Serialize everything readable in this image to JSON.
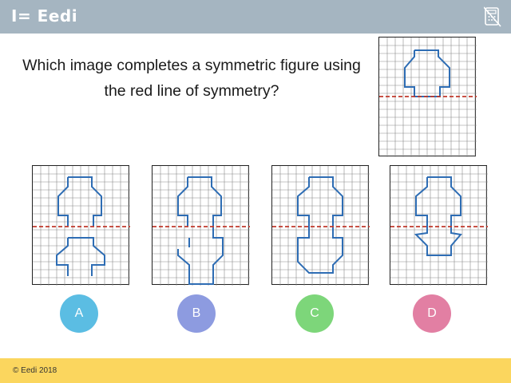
{
  "header": {
    "logo_text": "I= Eedi",
    "icon": "calculator-disabled-icon",
    "color": "#a5b5c1"
  },
  "question": {
    "line1": "Which image completes a symmetric figure using",
    "line2": "the red line of symmetry?"
  },
  "colors": {
    "shape": "#2e6db4",
    "symmetry_line": "#c0392b",
    "grid": "#8a8a8a"
  },
  "answers": [
    {
      "label": "A",
      "color": "#5bbde3"
    },
    {
      "label": "B",
      "color": "#8d9be0"
    },
    {
      "label": "C",
      "color": "#7dd67a"
    },
    {
      "label": "D",
      "color": "#e27fa3"
    }
  ],
  "footer": {
    "copyright": "© Eedi 2018",
    "color": "#fbd65e"
  }
}
